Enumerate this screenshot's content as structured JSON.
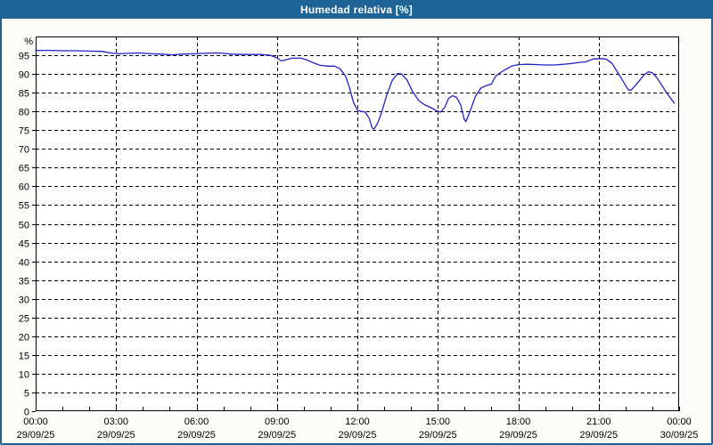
{
  "window": {
    "title": "Humedad relativa [%]"
  },
  "colors": {
    "titlebar_bg": "#1d6396",
    "frame_border": "#1d6396",
    "page_bg": "#fcfcf8",
    "plot_bg": "#ffffff",
    "grid": "#000000",
    "axis": "#000000",
    "line": "#2121c8",
    "title_text": "#ffffff",
    "label_text": "#000000"
  },
  "chart_data": {
    "type": "line",
    "title": "Humedad relativa [%]",
    "unit_label": "%",
    "xlabel": "",
    "ylabel": "%",
    "ylim": [
      0,
      100
    ],
    "grid": "dashed",
    "legend": "none",
    "y_ticks": [
      0,
      5,
      10,
      15,
      20,
      25,
      30,
      35,
      40,
      45,
      50,
      55,
      60,
      65,
      70,
      75,
      80,
      85,
      90,
      95
    ],
    "x_range_hours": [
      0,
      24
    ],
    "x_ticks": [
      {
        "hour": 0,
        "time": "00:00",
        "date": "29/09/25"
      },
      {
        "hour": 3,
        "time": "03:00",
        "date": "29/09/25"
      },
      {
        "hour": 6,
        "time": "06:00",
        "date": "29/09/25"
      },
      {
        "hour": 9,
        "time": "09:00",
        "date": "29/09/25"
      },
      {
        "hour": 12,
        "time": "12:00",
        "date": "29/09/25"
      },
      {
        "hour": 15,
        "time": "15:00",
        "date": "29/09/25"
      },
      {
        "hour": 18,
        "time": "18:00",
        "date": "29/09/25"
      },
      {
        "hour": 21,
        "time": "21:00",
        "date": "29/09/25"
      },
      {
        "hour": 24,
        "time": "00:00",
        "date": "30/09/25"
      }
    ],
    "series": [
      {
        "name": "Humedad relativa",
        "points": [
          [
            0,
            96.3
          ],
          [
            0.5,
            96.3
          ],
          [
            1,
            96.2
          ],
          [
            1.5,
            96.2
          ],
          [
            2,
            96.1
          ],
          [
            2.5,
            96.0
          ],
          [
            2.8,
            95.6
          ],
          [
            3.1,
            95.4
          ],
          [
            3.5,
            95.5
          ],
          [
            3.9,
            95.6
          ],
          [
            4.3,
            95.4
          ],
          [
            4.7,
            95.3
          ],
          [
            5.1,
            95.1
          ],
          [
            5.5,
            95.3
          ],
          [
            5.9,
            95.4
          ],
          [
            6.3,
            95.5
          ],
          [
            6.7,
            95.6
          ],
          [
            7.0,
            95.5
          ],
          [
            7.3,
            95.3
          ],
          [
            7.6,
            95.2
          ],
          [
            8.0,
            95.2
          ],
          [
            8.4,
            95.2
          ],
          [
            8.75,
            95.0
          ],
          [
            9.0,
            94.3
          ],
          [
            9.15,
            93.5
          ],
          [
            9.35,
            93.8
          ],
          [
            9.55,
            94.2
          ],
          [
            9.9,
            94.2
          ],
          [
            10.1,
            93.8
          ],
          [
            10.35,
            93.0
          ],
          [
            10.6,
            92.3
          ],
          [
            10.9,
            92.1
          ],
          [
            11.15,
            92.1
          ],
          [
            11.35,
            91.4
          ],
          [
            11.55,
            89.5
          ],
          [
            11.7,
            86.5
          ],
          [
            11.85,
            82.5
          ],
          [
            12.0,
            80.3
          ],
          [
            12.15,
            80.0
          ],
          [
            12.3,
            79.8
          ],
          [
            12.45,
            78.0
          ],
          [
            12.55,
            75.6
          ],
          [
            12.62,
            75.3
          ],
          [
            12.75,
            76.8
          ],
          [
            12.9,
            79.7
          ],
          [
            13.1,
            84.5
          ],
          [
            13.3,
            88.3
          ],
          [
            13.5,
            90.1
          ],
          [
            13.65,
            90.0
          ],
          [
            13.85,
            88.4
          ],
          [
            14.05,
            85.4
          ],
          [
            14.3,
            82.8
          ],
          [
            14.5,
            81.8
          ],
          [
            14.75,
            81.0
          ],
          [
            14.95,
            80.2
          ],
          [
            15.1,
            79.8
          ],
          [
            15.25,
            81.0
          ],
          [
            15.4,
            83.5
          ],
          [
            15.55,
            84.2
          ],
          [
            15.7,
            83.7
          ],
          [
            15.85,
            81.8
          ],
          [
            15.98,
            78.0
          ],
          [
            16.05,
            77.3
          ],
          [
            16.2,
            80.0
          ],
          [
            16.4,
            84.0
          ],
          [
            16.6,
            86.2
          ],
          [
            16.8,
            86.9
          ],
          [
            17.0,
            87.3
          ],
          [
            17.15,
            89.3
          ],
          [
            17.3,
            90.2
          ],
          [
            17.5,
            91.1
          ],
          [
            17.75,
            92.1
          ],
          [
            18.0,
            92.5
          ],
          [
            18.35,
            92.6
          ],
          [
            18.7,
            92.5
          ],
          [
            19.0,
            92.4
          ],
          [
            19.35,
            92.4
          ],
          [
            19.7,
            92.6
          ],
          [
            20.0,
            92.8
          ],
          [
            20.3,
            93.1
          ],
          [
            20.5,
            93.2
          ],
          [
            20.8,
            94.0
          ],
          [
            21.1,
            94.1
          ],
          [
            21.3,
            93.9
          ],
          [
            21.5,
            92.8
          ],
          [
            21.7,
            90.5
          ],
          [
            21.9,
            88.2
          ],
          [
            22.1,
            85.8
          ],
          [
            22.2,
            85.6
          ],
          [
            22.35,
            86.8
          ],
          [
            22.55,
            88.5
          ],
          [
            22.7,
            89.8
          ],
          [
            22.85,
            90.6
          ],
          [
            23.0,
            90.3
          ],
          [
            23.15,
            89.2
          ],
          [
            23.3,
            87.6
          ],
          [
            23.5,
            85.3
          ],
          [
            23.65,
            83.8
          ],
          [
            23.82,
            82.2
          ]
        ]
      }
    ]
  }
}
